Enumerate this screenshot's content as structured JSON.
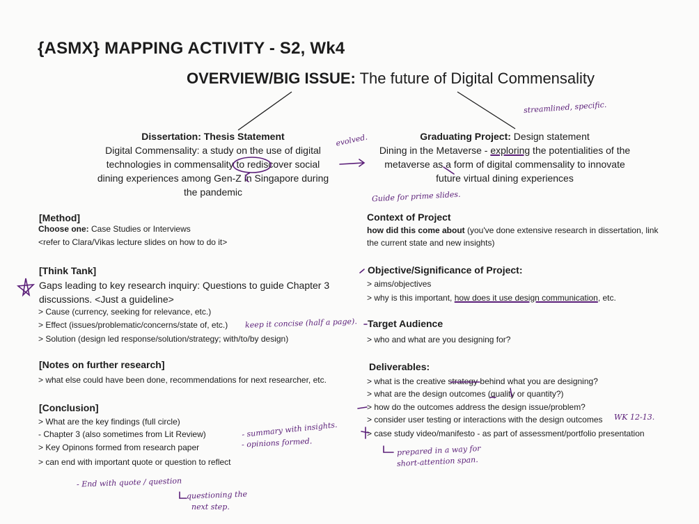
{
  "title": "{ASMX} MAPPING ACTIVITY - S2, Wk4",
  "overview": {
    "label": "OVERVIEW/BIG ISSUE:",
    "text": "The future of Digital Commensality"
  },
  "dissertation": {
    "heading_bold": "Dissertation: Thesis Statement",
    "lines": [
      "Digital Commensality: a study on the use of digital",
      "technologies in commensality to rediscover social",
      "dining experiences among Gen-Z in Singapore during",
      "the pandemic"
    ]
  },
  "graduating": {
    "heading_bold": "Graduating Project:",
    "heading_rest": " Design statement",
    "line1_pre": "Dining in the Metaverse - ",
    "line1_u": "exploring",
    "line1_post": " the potentialities of the",
    "line2": "metaverse as a form of digital commensality to innovate",
    "line3": "future virtual dining experiences"
  },
  "left": {
    "method": {
      "title": "[Method]",
      "choose_bold": "Choose one:",
      "choose_rest": " Case Studies or Interviews",
      "refer": "<refer to Clara/Vikas lecture slides on how to do it>"
    },
    "think_tank": {
      "title": "[Think Tank]",
      "gaps1": "Gaps leading to key research inquiry: Questions to guide Chapter 3",
      "gaps2": "discussions. <Just a guideline>",
      "items": [
        "> Cause (currency, seeking for relevance, etc.)",
        "> Effect (issues/problematic/concerns/state of, etc.)",
        "> Solution (design led response/solution/strategy; with/to/by design)"
      ]
    },
    "notes": {
      "title": "[Notes on further research]",
      "text": "> what else could have been done, recommendations for next researcher, etc."
    },
    "conclusion": {
      "title": "[Conclusion]",
      "items": [
        "> What are the key findings (full circle)",
        "- Chapter 3 (also sometimes from Lit Review)",
        "> Key Opinons formed from research paper",
        "> can end with important quote or question to reflect"
      ]
    }
  },
  "right": {
    "context": {
      "title": "Context of Project",
      "line1_bold": "how did this come about",
      "line1_rest": " (you've done extensive research in dissertation, link",
      "line2": "the current state and new insights)"
    },
    "objective": {
      "title": "Objective/Significance of Project:",
      "item1": "> aims/objectives",
      "item2_pre": "> why is this important, ",
      "item2_u": "how does it use design communication",
      "item2_post": ", etc."
    },
    "target": {
      "title": "Target Audience",
      "item": "> who and what are you designing for?"
    },
    "deliverables": {
      "title": "Deliverables:",
      "items": [
        "> what is the creative strategy behind what you are designing?",
        "> what are the design outcomes (quality or quantity?)",
        "> how do the outcomes address the design issue/problem?",
        "> consider user testing or interactions with the design outcomes",
        "> case study video/manifesto - as part of assessment/portfolio presentation"
      ]
    }
  },
  "annotations": {
    "streamlined": "streamlined, specific.",
    "evolved": "evolved.",
    "guide": "Guide for prime slides.",
    "concise": "keep it concise (half a page).",
    "summary": "- summary with insights.",
    "opinions": "- opinions formed.",
    "wk": "WK 12-13.",
    "prepared1": "prepared in a way for",
    "prepared2": "short-attention span.",
    "endquote": "- End with quote / question",
    "questioning1": "questioning the",
    "questioning2": "next step."
  },
  "colors": {
    "ink": "#1c1c1c",
    "pen": "#5a1e78",
    "paper": "#fbfbfa"
  }
}
